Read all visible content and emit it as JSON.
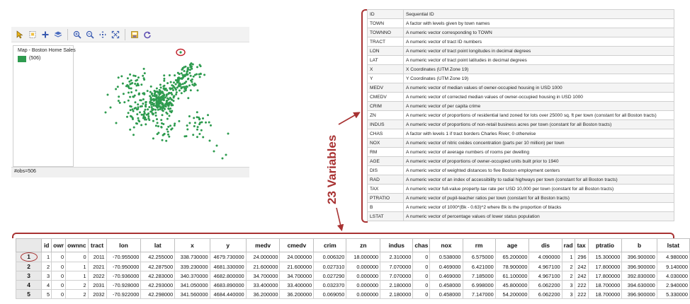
{
  "map": {
    "legend_title": "Map - Boston Home Sales",
    "legend_count": "(506)",
    "status": "#obs=506",
    "point_color": "#2e9b4f",
    "highlight_color": "#c0202a"
  },
  "toolbar": {
    "tools": [
      "select-arrow-icon",
      "select-region-icon",
      "add-icon",
      "layers-icon",
      "zoom-in-icon",
      "zoom-out-icon",
      "pan-icon",
      "fit-extent-icon",
      "save-image-icon",
      "refresh-icon"
    ]
  },
  "annotation": {
    "label": "23 Variables",
    "color": "#a83232"
  },
  "variables": [
    {
      "name": "ID",
      "desc": "Sequential ID"
    },
    {
      "name": "TOWN",
      "desc": "A factor with levels given by town names"
    },
    {
      "name": "TOWNNO",
      "desc": "A numeric vector corresponding to TOWN"
    },
    {
      "name": "TRACT",
      "desc": "A numeric vector of tract ID numbers"
    },
    {
      "name": "LON",
      "desc": "A numeric vector of tract point longitudes in decimal degrees"
    },
    {
      "name": "LAT",
      "desc": "A numeric vector of tract point latitudes in decimal degrees"
    },
    {
      "name": "X",
      "desc": "X Coordinates (UTM Zone 19)"
    },
    {
      "name": "Y",
      "desc": "Y Coordinates (UTM Zone 19)"
    },
    {
      "name": "MEDV",
      "desc": "A numeric vector of median values of owner-occupied housing in USD 1000"
    },
    {
      "name": "CMEDV",
      "desc": "A numeric vector of corrected median values of owner-occupied housing in USD 1000"
    },
    {
      "name": "CRIM",
      "desc": "A numeric vector of per capita crime"
    },
    {
      "name": "ZN",
      "desc": "A numeric vector of proportions of residential land zoned for lots over 25000 sq. ft per town (constant for all Boston tracts)"
    },
    {
      "name": "INDUS",
      "desc": "A numeric vector of proportions of non-retail business acres per town (constant for all Boston tracts)"
    },
    {
      "name": "CHAS",
      "desc": "A factor with levels 1 if tract borders Charles River; 0 otherwise"
    },
    {
      "name": "NOX",
      "desc": "A numeric vector of nitric oxides concentration (parts per 10 million) per town"
    },
    {
      "name": "RM",
      "desc": "A numeric vector of average numbers of rooms per dwelling"
    },
    {
      "name": "AGE",
      "desc": "A numeric vector of proportions of owner-occupied units built prior to 1940"
    },
    {
      "name": "DIS",
      "desc": "A numeric vector of weighted distances to five Boston employment centers"
    },
    {
      "name": "RAD",
      "desc": "A numeric vector of an index of accessibility to radial highways per town (constant for all Boston tracts)"
    },
    {
      "name": "TAX",
      "desc": "A numeric vector full-value property-tax rate per USD 10,000 per town (constant for all Boston tracts)"
    },
    {
      "name": "PTRATIO",
      "desc": "A numeric vector of pupil-teacher ratios per town (constant for all Boston tracts)"
    },
    {
      "name": "B",
      "desc": "A numeric vector of 1000*(Bk - 0.63)^2 where Bk is the proportion of blacks"
    },
    {
      "name": "LSTAT",
      "desc": "A numeric vector of percentage values of lower status population"
    }
  ],
  "grid": {
    "columns": [
      "id",
      "owr",
      "ownnc",
      "tract",
      "lon",
      "lat",
      "x",
      "y",
      "medv",
      "cmedv",
      "crim",
      "zn",
      "indus",
      "chas",
      "nox",
      "rm",
      "age",
      "dis",
      "rad",
      "tax",
      "ptratio",
      "b",
      "lstat"
    ],
    "rows": [
      {
        "num": "1",
        "cells": [
          "1",
          "0",
          "0",
          "2011",
          "-70.955000",
          "42.255000",
          "338.730000",
          "4679.730000",
          "24.000000",
          "24.000000",
          "0.006320",
          "18.000000",
          "2.310000",
          "0",
          "0.538000",
          "6.575000",
          "65.200000",
          "4.090000",
          "1",
          "296",
          "15.300000",
          "396.900000",
          "4.980000"
        ]
      },
      {
        "num": "2",
        "cells": [
          "2",
          "0",
          "1",
          "2021",
          "-70.950000",
          "42.287500",
          "339.230000",
          "4681.330000",
          "21.600000",
          "21.600000",
          "0.027310",
          "0.000000",
          "7.070000",
          "0",
          "0.469000",
          "6.421000",
          "78.900000",
          "4.967100",
          "2",
          "242",
          "17.800000",
          "396.900000",
          "9.140000"
        ]
      },
      {
        "num": "3",
        "cells": [
          "3",
          "0",
          "1",
          "2022",
          "-70.936000",
          "42.283000",
          "340.370000",
          "4682.800000",
          "34.700000",
          "34.700000",
          "0.027290",
          "0.000000",
          "7.070000",
          "0",
          "0.469000",
          "7.185000",
          "61.100000",
          "4.967100",
          "2",
          "242",
          "17.800000",
          "392.830000",
          "4.030000"
        ]
      },
      {
        "num": "4",
        "cells": [
          "4",
          "0",
          "2",
          "2031",
          "-70.928000",
          "42.293000",
          "341.050000",
          "4683.890000",
          "33.400000",
          "33.400000",
          "0.032370",
          "0.000000",
          "2.180000",
          "0",
          "0.458000",
          "6.998000",
          "45.800000",
          "6.062200",
          "3",
          "222",
          "18.700000",
          "394.630000",
          "2.940000"
        ]
      },
      {
        "num": "5",
        "cells": [
          "5",
          "0",
          "2",
          "2032",
          "-70.922000",
          "42.298000",
          "341.560000",
          "4684.440000",
          "36.200000",
          "36.200000",
          "0.069050",
          "0.000000",
          "2.180000",
          "0",
          "0.458000",
          "7.147000",
          "54.200000",
          "6.062200",
          "3",
          "222",
          "18.700000",
          "396.900000",
          "5.330000"
        ]
      }
    ]
  }
}
